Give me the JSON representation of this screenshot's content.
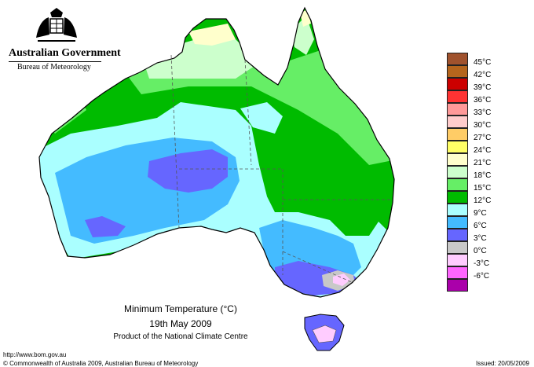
{
  "header": {
    "gov_title": "Australian Government",
    "bureau": "Bureau of Meteorology"
  },
  "map": {
    "title": "Minimum Temperature (°C)",
    "date": "19th May 2009",
    "product": "Product of the National Climate Centre"
  },
  "footer": {
    "url": "http://www.bom.gov.au",
    "copyright": "© Commonwealth of Australia 2009, Australian Bureau of Meteorology",
    "issued": "Issued: 20/05/2009"
  },
  "legend": [
    {
      "label": "45°C",
      "color": "#a0522d"
    },
    {
      "label": "42°C",
      "color": "#b5651d"
    },
    {
      "label": "39°C",
      "color": "#cc0000"
    },
    {
      "label": "36°C",
      "color": "#ff3333"
    },
    {
      "label": "33°C",
      "color": "#ff9999"
    },
    {
      "label": "30°C",
      "color": "#ffcccc"
    },
    {
      "label": "27°C",
      "color": "#ffcc66"
    },
    {
      "label": "24°C",
      "color": "#ffff66"
    },
    {
      "label": "21°C",
      "color": "#ffffcc"
    },
    {
      "label": "18°C",
      "color": "#ccffcc"
    },
    {
      "label": "15°C",
      "color": "#66ee66"
    },
    {
      "label": "12°C",
      "color": "#00bb00"
    },
    {
      "label": "9°C",
      "color": "#aaffff"
    },
    {
      "label": "6°C",
      "color": "#44bbff"
    },
    {
      "label": "3°C",
      "color": "#6666ff"
    },
    {
      "label": "0°C",
      "color": "#c8c8c8"
    },
    {
      "label": "-3°C",
      "color": "#ffccff"
    },
    {
      "label": "-6°C",
      "color": "#ff66ff"
    },
    {
      "label": "",
      "color": "#aa00aa"
    }
  ],
  "colors": {
    "outline": "#000000",
    "border_lines": "#555555"
  }
}
